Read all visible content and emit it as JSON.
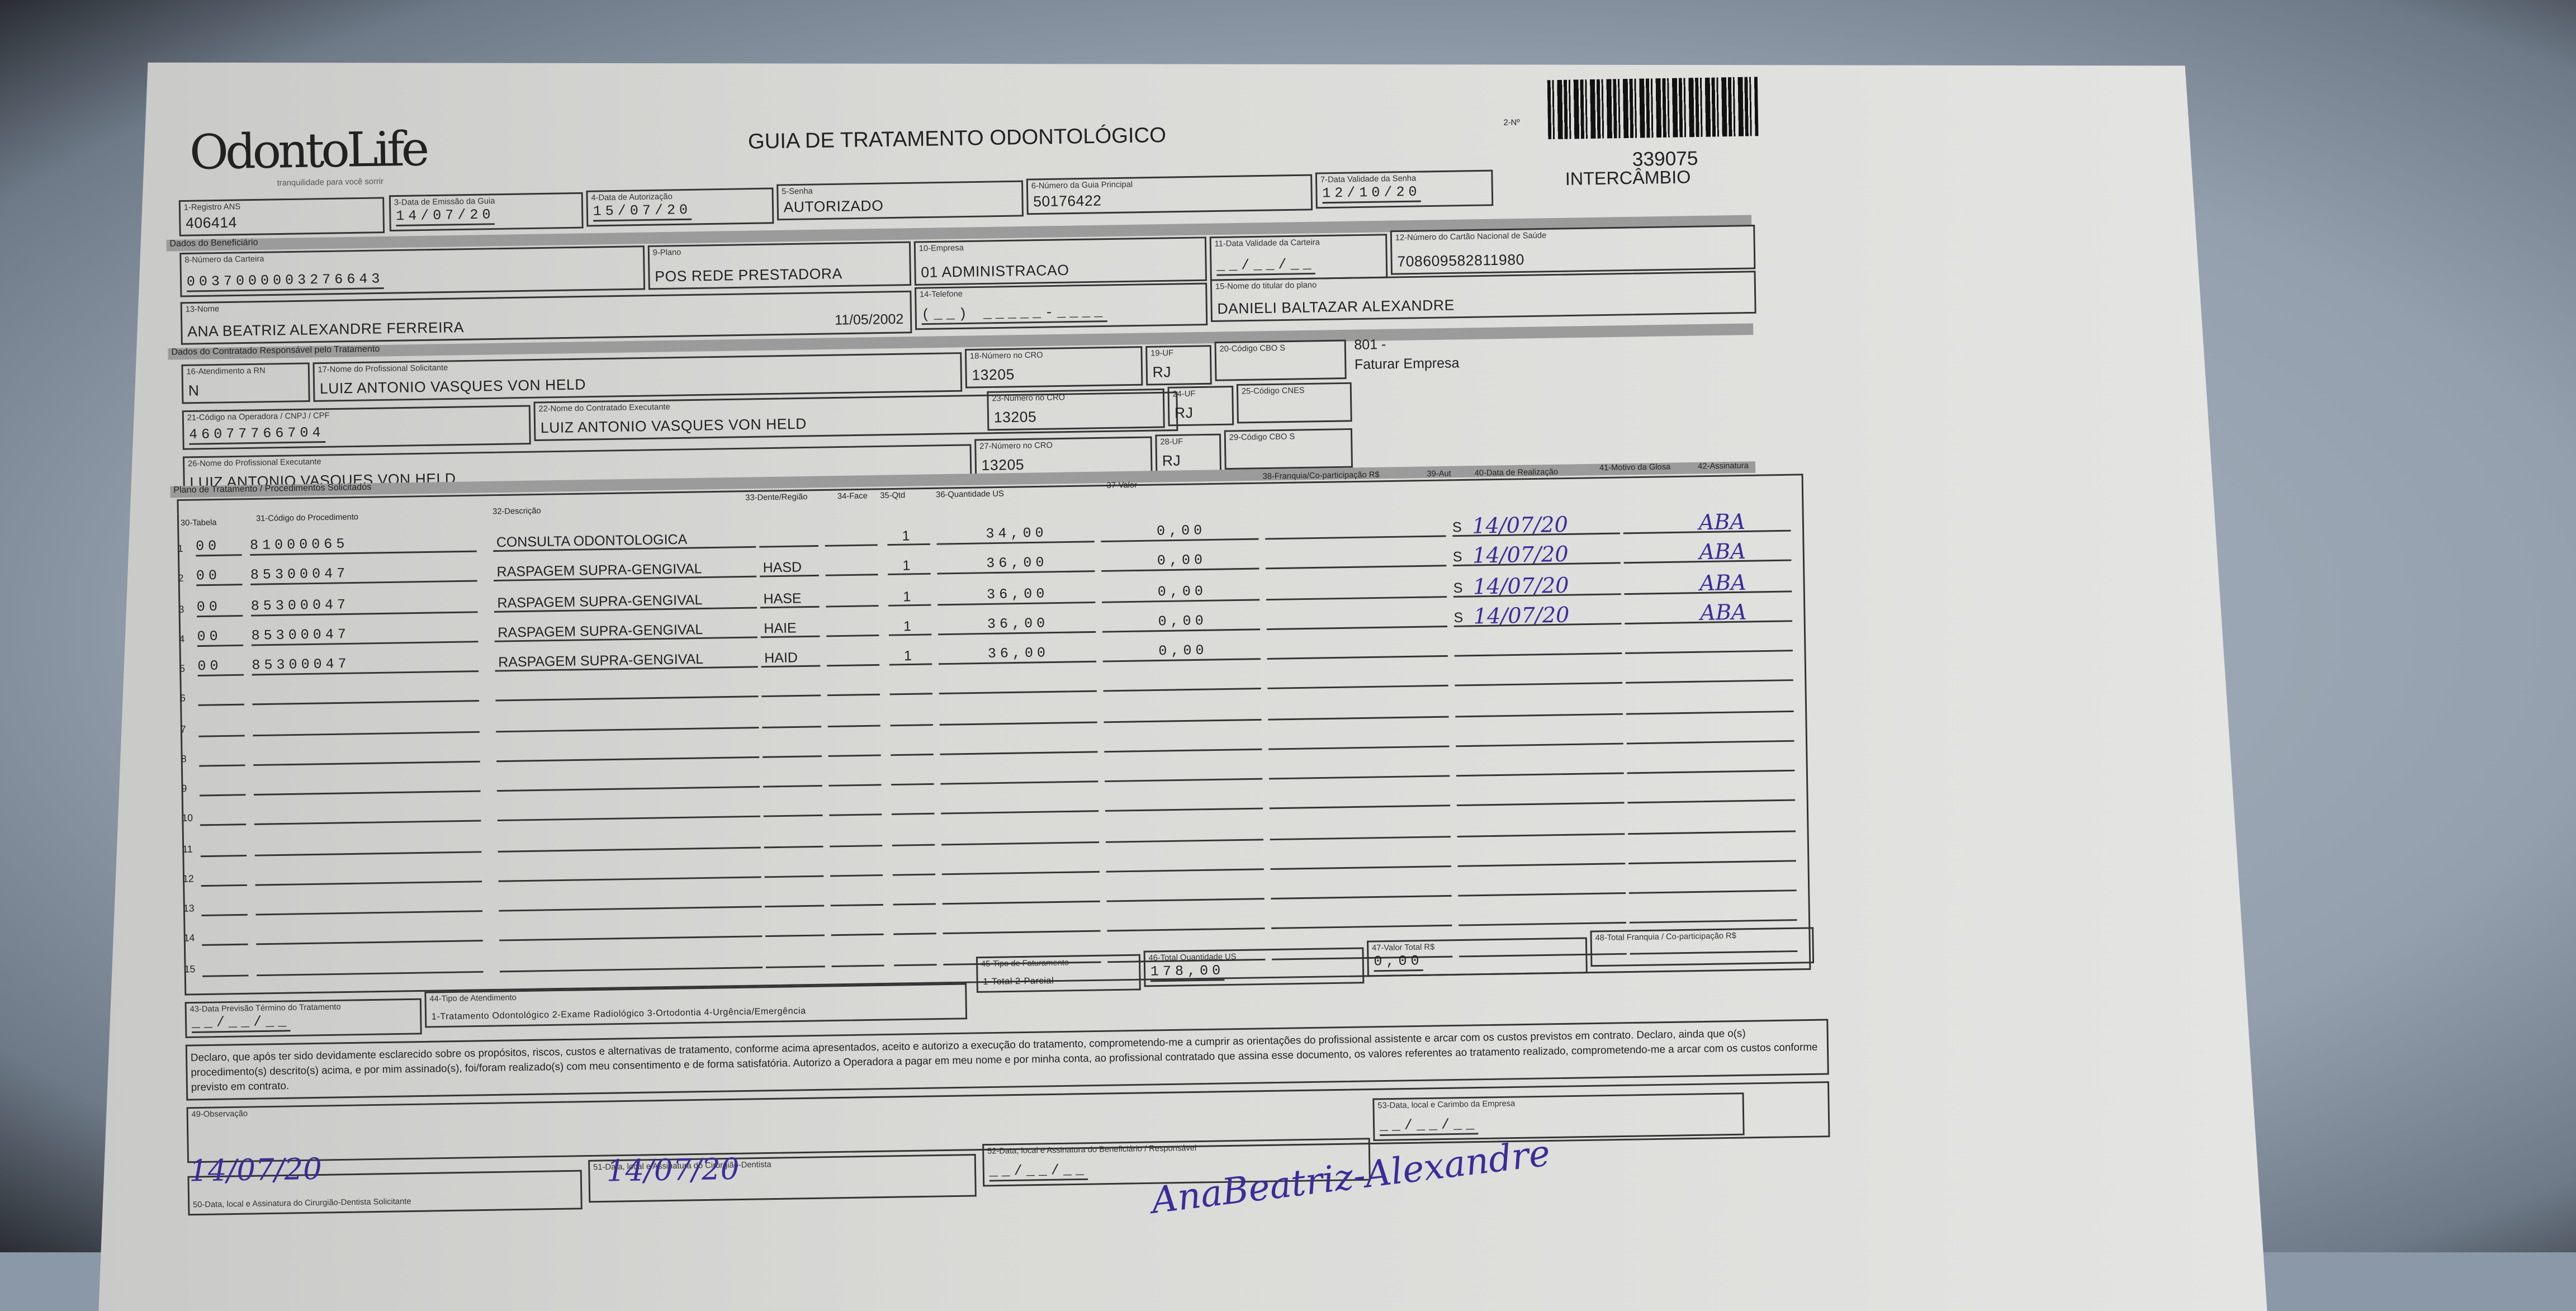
{
  "logo": {
    "brand": "OdontoLife",
    "tagline": "tranquilidade para você sorrir"
  },
  "title": "GUIA DE TRATAMENTO ODONTOLÓGICO",
  "numero_label": "2-Nº",
  "guide_number": "339075",
  "guide_type": "INTERCÂMBIO",
  "header": [
    {
      "label": "1-Registro ANS",
      "value": "406414"
    },
    {
      "label": "3-Data de Emissão da Guia",
      "value": "14/07/20"
    },
    {
      "label": "4-Data de Autorização",
      "value": "15/07/20"
    },
    {
      "label": "5-Senha",
      "value": "AUTORIZADO"
    },
    {
      "label": "6-Número da Guia Principal",
      "value": "50176422"
    },
    {
      "label": "7-Data Validade da Senha",
      "value": "12/10/20"
    }
  ],
  "beneficiario": {
    "section": "Dados do Beneficiário",
    "carteira": {
      "label": "8-Número da Carteira",
      "value": "0037000003276643"
    },
    "plano": {
      "label": "9-Plano",
      "value": "POS REDE PRESTADORA"
    },
    "empresa": {
      "label": "10-Empresa",
      "value": "01 ADMINISTRACAO"
    },
    "validade": {
      "label": "11-Data Validade da Carteira",
      "value": "__/__/__"
    },
    "cns": {
      "label": "12-Número do Cartão Nacional de Saúde",
      "value": "708609582811980"
    },
    "nome": {
      "label": "13-Nome",
      "value": "ANA BEATRIZ ALEXANDRE FERREIRA"
    },
    "nascimento": "11/05/2002",
    "telefone": {
      "label": "14-Telefone",
      "value": "(__) _____-____"
    },
    "titular": {
      "label": "15-Nome do titular do plano",
      "value": "DANIELI BALTAZAR ALEXANDRE"
    }
  },
  "contratado": {
    "section": "Dados do Contratado Responsável pelo Tratamento",
    "rn": {
      "label": "16-Atendimento a RN",
      "value": "N"
    },
    "solicitante": {
      "label": "17-Nome do Profissional Solicitante",
      "value": "LUIZ ANTONIO VASQUES VON HELD"
    },
    "cro18": {
      "label": "18-Número no CRO",
      "value": "13205"
    },
    "uf19": {
      "label": "19-UF",
      "value": "RJ"
    },
    "cbo20": {
      "label": "20-Código CBO S",
      "value": ""
    },
    "note1": "801 -",
    "note2": "Faturar Empresa",
    "cnpj": {
      "label": "21-Código na Operadora / CNPJ / CPF",
      "value": "46077766704"
    },
    "executante_contr": {
      "label": "22-Nome do Contratado Executante",
      "value": "LUIZ ANTONIO VASQUES VON HELD"
    },
    "cro23": {
      "label": "23-Número no CRO",
      "value": "13205"
    },
    "uf24": {
      "label": "24-UF",
      "value": "RJ"
    },
    "cnes": {
      "label": "25-Código CNES",
      "value": ""
    },
    "executante": {
      "label": "26-Nome do Profissional Executante",
      "value": "LUIZ ANTONIO VASQUES VON HELD"
    },
    "cro27": {
      "label": "27-Número no CRO",
      "value": "13205"
    },
    "uf28": {
      "label": "28-UF",
      "value": "RJ"
    },
    "cbo29": {
      "label": "29-Código CBO S",
      "value": ""
    }
  },
  "plano": {
    "section": "Plano de Tratamento / Procedimentos Solicitados",
    "columns": [
      "30-Tabela",
      "31-Código do Procedimento",
      "32-Descrição",
      "33-Dente/Região",
      "34-Face",
      "35-Qtd",
      "36-Quantidade US",
      "37-Valor",
      "38-Franquia/Co-participação R$",
      "39-Aut",
      "40-Data de Realização",
      "41-Motivo da Glosa",
      "42-Assinatura"
    ],
    "rows": [
      {
        "n": "1",
        "tabela": "00",
        "codigo": "81000065",
        "descricao": "CONSULTA ODONTOLOGICA",
        "dente": "",
        "qtd": "1",
        "us": "34,00",
        "valor": "0,00",
        "aut": "S",
        "data": "14/07/20",
        "assinatura": "ABA"
      },
      {
        "n": "2",
        "tabela": "00",
        "codigo": "85300047",
        "descricao": "RASPAGEM SUPRA-GENGIVAL",
        "dente": "HASD",
        "qtd": "1",
        "us": "36,00",
        "valor": "0,00",
        "aut": "S",
        "data": "14/07/20",
        "assinatura": "ABA"
      },
      {
        "n": "3",
        "tabela": "00",
        "codigo": "85300047",
        "descricao": "RASPAGEM SUPRA-GENGIVAL",
        "dente": "HASE",
        "qtd": "1",
        "us": "36,00",
        "valor": "0,00",
        "aut": "S",
        "data": "14/07/20",
        "assinatura": "ABA"
      },
      {
        "n": "4",
        "tabela": "00",
        "codigo": "85300047",
        "descricao": "RASPAGEM SUPRA-GENGIVAL",
        "dente": "HAIE",
        "qtd": "1",
        "us": "36,00",
        "valor": "0,00",
        "aut": "S",
        "data": "14/07/20",
        "assinatura": "ABA"
      },
      {
        "n": "5",
        "tabela": "00",
        "codigo": "85300047",
        "descricao": "RASPAGEM SUPRA-GENGIVAL",
        "dente": "HAID",
        "qtd": "1",
        "us": "36,00",
        "valor": "0,00",
        "aut": "",
        "data": "",
        "assinatura": ""
      },
      {
        "n": "6"
      },
      {
        "n": "7"
      },
      {
        "n": "8"
      },
      {
        "n": "9"
      },
      {
        "n": "10"
      },
      {
        "n": "11"
      },
      {
        "n": "12"
      },
      {
        "n": "13"
      },
      {
        "n": "14"
      },
      {
        "n": "15"
      }
    ]
  },
  "totais": {
    "previsao": {
      "label": "43-Data Previsão Término do Tratamento",
      "value": "__/__/__"
    },
    "atendimento": {
      "label": "44-Tipo de Atendimento",
      "options": "1-Tratamento Odontológico  2-Exame Radiológico  3-Ortodontia  4-Urgência/Emergência"
    },
    "faturamento": {
      "label": "45-Tipo de Faturamento",
      "options": "1-Total  2-Parcial"
    },
    "total_us": {
      "label": "46-Total Quantidade US",
      "value": "178,00"
    },
    "valor_total": {
      "label": "47-Valor Total R$",
      "value": "0,00"
    },
    "franquia_total": {
      "label": "48-Total Franquia / Co-participação R$",
      "value": ""
    }
  },
  "declaracao": "Declaro, que após ter sido devidamente esclarecido sobre os propósitos, riscos, custos e alternativas de tratamento, conforme acima apresentados, aceito e autorizo a execução do tratamento, comprometendo-me a cumprir as orientações do profissional assistente e arcar com os custos previstos em contrato. Declaro, ainda que o(s) procedimento(s) descrito(s) acima, e por mim assinado(s), foi/foram realizado(s) com meu consentimento e de forma satisfatória. Autorizo a Operadora a pagar em meu nome e por minha conta, ao profissional contratado que assina esse documento, os valores referentes ao tratamento realizado, comprometendo-me a arcar com os custos conforme previsto em contrato.",
  "observacao": {
    "label": "49-Observação"
  },
  "assinaturas": {
    "s50": {
      "label": "50-Data, local e Assinatura do Cirurgião-Dentista Solicitante",
      "hand": "14/07/20"
    },
    "s51": {
      "label": "51-Data, local e Assinatura do Cirurgião-Dentista",
      "hand": "14/07/20"
    },
    "s52": {
      "label": "52-Data, local e Assinatura do Beneficiário / Responsável",
      "value": "__/__/__"
    },
    "s53": {
      "label": "53-Data, local e Carimbo da Empresa",
      "value": "__/__/__"
    },
    "beneficiario_signature": "AnaBeatriz-Alexandre"
  },
  "colors": {
    "ink": "#3a2c9a",
    "band": "#9b9b9b",
    "background": "#94a0ae"
  }
}
